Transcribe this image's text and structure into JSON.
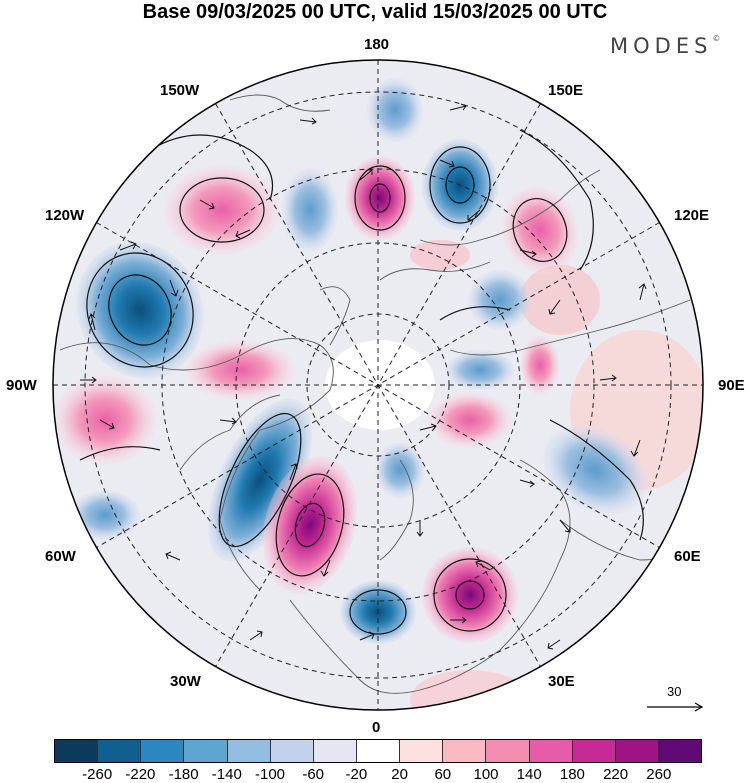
{
  "header": {
    "title": "Base 09/03/2025 00 UTC, valid 15/03/2025 00 UTC",
    "brand": "MODES",
    "brand_mark": "©"
  },
  "map": {
    "projection": "north polar stereographic",
    "longitude_labels": {
      "lon_180": "180",
      "lon_150E": "150E",
      "lon_120E": "120E",
      "lon_90E": "90E",
      "lon_60E": "60E",
      "lon_30E": "30E",
      "lon_0": "0",
      "lon_30W": "30W",
      "lon_60W": "60W",
      "lon_90W": "90W",
      "lon_120W": "120W",
      "lon_150W": "150W"
    },
    "reference_vector": {
      "value": "30"
    }
  },
  "colorbar": {
    "colors": [
      "#0b3a5a",
      "#115f8f",
      "#2a87bf",
      "#5fa5d1",
      "#92bde0",
      "#c3d1ea",
      "#e6e6f3",
      "#ffffff",
      "#fde0e0",
      "#f8b9c3",
      "#f28cb1",
      "#e65ca8",
      "#c72a94",
      "#9e1484",
      "#620a74"
    ],
    "ticks": [
      "-260",
      "-220",
      "-180",
      "-140",
      "-100",
      "-60",
      "-20",
      "20",
      "60",
      "100",
      "140",
      "180",
      "220",
      "260"
    ]
  }
}
